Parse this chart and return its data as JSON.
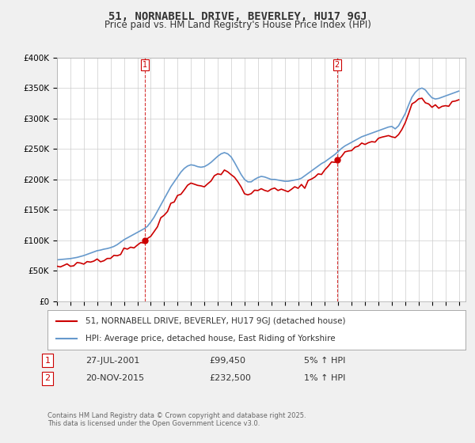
{
  "title": "51, NORNABELL DRIVE, BEVERLEY, HU17 9GJ",
  "subtitle": "Price paid vs. HM Land Registry's House Price Index (HPI)",
  "ylabel_ticks": [
    "£0",
    "£50K",
    "£100K",
    "£150K",
    "£200K",
    "£250K",
    "£300K",
    "£350K",
    "£400K"
  ],
  "ylim": [
    0,
    400000
  ],
  "xlim_start": 1995.0,
  "xlim_end": 2025.5,
  "background_color": "#f0f0f0",
  "plot_bg_color": "#ffffff",
  "red_line_color": "#cc0000",
  "blue_line_color": "#6699cc",
  "vline_color": "#cc0000",
  "marker1_x": 2001.57,
  "marker2_x": 2015.9,
  "transaction1": {
    "date": "27-JUL-2001",
    "price": "£99,450",
    "change": "5% ↑ HPI"
  },
  "transaction2": {
    "date": "20-NOV-2015",
    "price": "£232,500",
    "change": "1% ↑ HPI"
  },
  "legend_line1": "51, NORNABELL DRIVE, BEVERLEY, HU17 9GJ (detached house)",
  "legend_line2": "HPI: Average price, detached house, East Riding of Yorkshire",
  "footer": "Contains HM Land Registry data © Crown copyright and database right 2025.\nThis data is licensed under the Open Government Licence v3.0.",
  "hpi_data": {
    "years": [
      1995.0,
      1995.25,
      1995.5,
      1995.75,
      1996.0,
      1996.25,
      1996.5,
      1996.75,
      1997.0,
      1997.25,
      1997.5,
      1997.75,
      1998.0,
      1998.25,
      1998.5,
      1998.75,
      1999.0,
      1999.25,
      1999.5,
      1999.75,
      2000.0,
      2000.25,
      2000.5,
      2000.75,
      2001.0,
      2001.25,
      2001.5,
      2001.75,
      2002.0,
      2002.25,
      2002.5,
      2002.75,
      2003.0,
      2003.25,
      2003.5,
      2003.75,
      2004.0,
      2004.25,
      2004.5,
      2004.75,
      2005.0,
      2005.25,
      2005.5,
      2005.75,
      2006.0,
      2006.25,
      2006.5,
      2006.75,
      2007.0,
      2007.25,
      2007.5,
      2007.75,
      2008.0,
      2008.25,
      2008.5,
      2008.75,
      2009.0,
      2009.25,
      2009.5,
      2009.75,
      2010.0,
      2010.25,
      2010.5,
      2010.75,
      2011.0,
      2011.25,
      2011.5,
      2011.75,
      2012.0,
      2012.25,
      2012.5,
      2012.75,
      2013.0,
      2013.25,
      2013.5,
      2013.75,
      2014.0,
      2014.25,
      2014.5,
      2014.75,
      2015.0,
      2015.25,
      2015.5,
      2015.75,
      2016.0,
      2016.25,
      2016.5,
      2016.75,
      2017.0,
      2017.25,
      2017.5,
      2017.75,
      2018.0,
      2018.25,
      2018.5,
      2018.75,
      2019.0,
      2019.25,
      2019.5,
      2019.75,
      2020.0,
      2020.25,
      2020.5,
      2020.75,
      2021.0,
      2021.25,
      2021.5,
      2021.75,
      2022.0,
      2022.25,
      2022.5,
      2022.75,
      2023.0,
      2023.25,
      2023.5,
      2023.75,
      2024.0,
      2024.25,
      2024.5,
      2024.75,
      2025.0
    ],
    "values": [
      68000,
      68500,
      69000,
      69500,
      70000,
      71000,
      72000,
      73500,
      75000,
      77000,
      79000,
      81000,
      83000,
      84000,
      85500,
      86500,
      88000,
      90000,
      93000,
      97000,
      101000,
      104000,
      107000,
      110000,
      113000,
      116000,
      119000,
      123000,
      130000,
      138000,
      148000,
      158000,
      168000,
      178000,
      188000,
      196000,
      204000,
      212000,
      218000,
      222000,
      224000,
      223000,
      221000,
      220000,
      221000,
      224000,
      228000,
      233000,
      238000,
      242000,
      244000,
      242000,
      237000,
      228000,
      218000,
      208000,
      200000,
      196000,
      196000,
      200000,
      203000,
      205000,
      204000,
      202000,
      200000,
      200000,
      199000,
      198000,
      197000,
      197000,
      198000,
      199000,
      200000,
      202000,
      206000,
      210000,
      214000,
      218000,
      222000,
      226000,
      229000,
      233000,
      237000,
      241000,
      246000,
      251000,
      255000,
      258000,
      261000,
      264000,
      267000,
      270000,
      272000,
      274000,
      276000,
      278000,
      280000,
      282000,
      284000,
      286000,
      287000,
      283000,
      288000,
      298000,
      308000,
      322000,
      335000,
      343000,
      348000,
      350000,
      347000,
      340000,
      334000,
      332000,
      333000,
      335000,
      337000,
      339000,
      341000,
      343000,
      345000
    ]
  },
  "price_paid_points": [
    {
      "year": 2001.57,
      "price": 99450
    },
    {
      "year": 2015.9,
      "price": 232500
    }
  ]
}
